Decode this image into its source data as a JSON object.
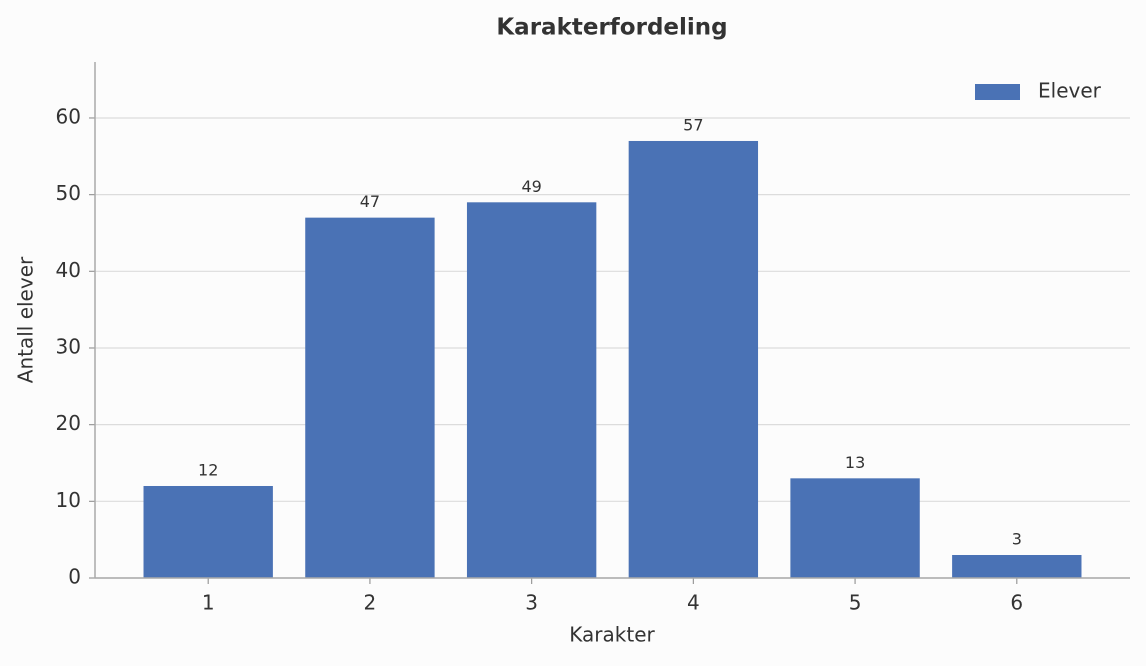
{
  "chart_data": {
    "type": "bar",
    "title": "Karakterfordeling",
    "x_label": "Karakter",
    "y_label": "Antall elever",
    "categories": [
      "1",
      "2",
      "3",
      "4",
      "5",
      "6"
    ],
    "series": [
      {
        "name": "Elever",
        "color": "#4a72b5",
        "values": [
          12,
          47,
          49,
          57,
          13,
          3
        ]
      }
    ],
    "ylim": [
      0,
      67.3
    ],
    "yticks": [
      0,
      10,
      20,
      30,
      40,
      50,
      60
    ],
    "grid": true,
    "legend": "upper right"
  }
}
